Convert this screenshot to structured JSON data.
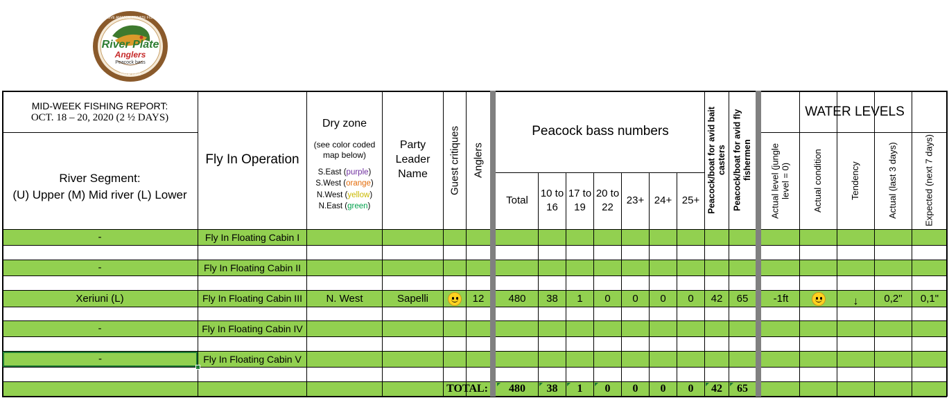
{
  "logo": {
    "top_text": "EXCLUSIVE AMAZON PRIVATE FISHERIES",
    "brand_line1": "River Plate",
    "brand_line2": "Anglers",
    "sub": "Peacock bass",
    "since": "Since 1992"
  },
  "header": {
    "report_line1": "MID-WEEK FISHING REPORT:",
    "report_line2": "OCT. 18 – 20, 2020 (2 ½ DAYS)",
    "segment_line1": "River Segment:",
    "segment_line2": "(U) Upper (M) Mid river (L) Lower",
    "operation": "Fly In Operation",
    "dry_zone": "Dry zone",
    "dry_zone_note": "(see color coded map below)",
    "zones": [
      {
        "dir": "S.East",
        "color_word": "purple",
        "color": "#7030a0"
      },
      {
        "dir": "S.West",
        "color_word": "orange",
        "color": "#e46c0a"
      },
      {
        "dir": "N.West",
        "color_word": "yellow",
        "color": "#c9b800"
      },
      {
        "dir": "N.East",
        "color_word": "green",
        "color": "#00a04b"
      }
    ],
    "party_leader": "Party Leader Name",
    "guest_critiques": "Guest critiques",
    "anglers": "Anglers",
    "peacock_numbers": "Peacock bass numbers",
    "total": "Total",
    "size_cols": [
      "10 to 16",
      "17 to 19",
      "20 to 22",
      "23+",
      "24+",
      "25+"
    ],
    "per_boat_bait": "Peacock/boat for avid bait casters",
    "per_boat_fly": "Peacock/boat for avid fly fishermen",
    "water_levels": "WATER LEVELS",
    "water_cols": [
      "Actual level (jungle level = 0)",
      "Actual condition",
      "Tendency",
      "Actual (last 3 days)",
      "Expected (next 7 days)"
    ]
  },
  "rows": [
    {
      "segment": "-",
      "operation": "Fly In Floating Cabin I"
    },
    {
      "segment": "-",
      "operation": "Fly In Floating Cabin II"
    },
    {
      "segment": "Xeriuni (L)",
      "operation": "Fly In Floating Cabin III",
      "zone": "N. West",
      "leader": "Sapelli",
      "anglers": "12",
      "total": "480",
      "sizes": [
        "38",
        "1",
        "0",
        "0",
        "0",
        "0"
      ],
      "bait": "42",
      "fly": "65",
      "level": "-1ft",
      "tendency": "↓",
      "actual": "0,2\"",
      "expected": "0,1\""
    },
    {
      "segment": "-",
      "operation": "Fly In Floating Cabin IV"
    },
    {
      "segment": "-",
      "operation": "Fly In Floating Cabin V"
    }
  ],
  "totals": {
    "label": "TOTAL:",
    "total": "480",
    "sizes": [
      "38",
      "1",
      "0",
      "0",
      "0",
      "0"
    ],
    "bait": "42",
    "fly": "65"
  },
  "colors": {
    "green": "#92d050",
    "border": "#000000",
    "separator": "#808080"
  }
}
